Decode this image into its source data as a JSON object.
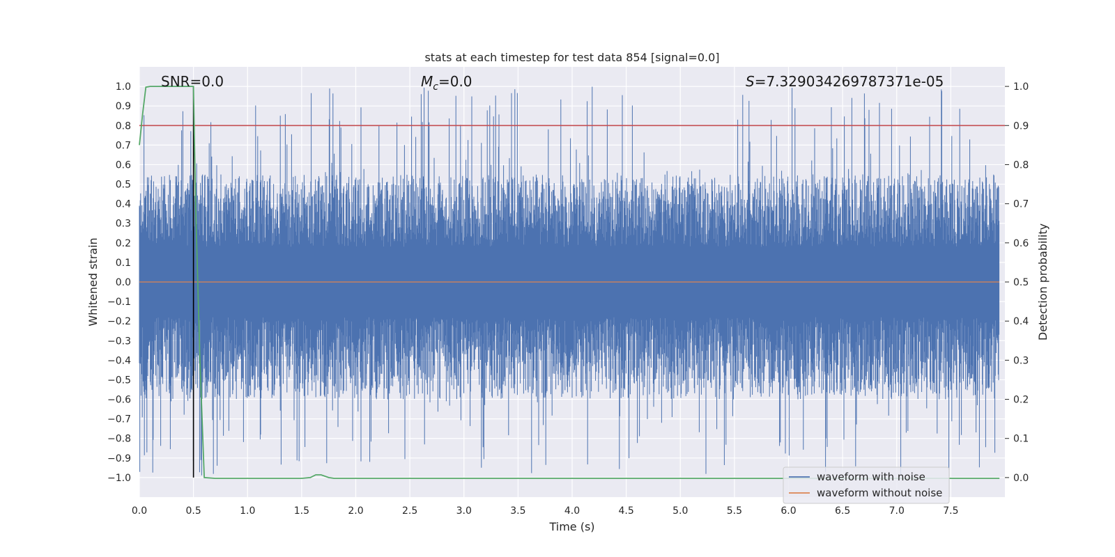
{
  "chart_data": {
    "type": "line",
    "title": "stats at each timestep for test data 854 [signal=0.0]",
    "xlabel": "Time (s)",
    "ylabel": "Whitened strain",
    "y2label": "Detection probability",
    "xlim": [
      0.0,
      8.0
    ],
    "ylim": [
      -1.1,
      1.1
    ],
    "y2lim": [
      -0.05,
      1.05
    ],
    "xticks": [
      0.0,
      0.5,
      1.0,
      1.5,
      2.0,
      2.5,
      3.0,
      3.5,
      4.0,
      4.5,
      5.0,
      5.5,
      6.0,
      6.5,
      7.0,
      7.5
    ],
    "xtick_labels": [
      "0.0",
      "0.5",
      "1.0",
      "1.5",
      "2.0",
      "2.5",
      "3.0",
      "3.5",
      "4.0",
      "4.5",
      "5.0",
      "5.5",
      "6.0",
      "6.5",
      "7.0",
      "7.5"
    ],
    "yticks": [
      1.0,
      0.9,
      0.8,
      0.7,
      0.6,
      0.5,
      0.4,
      0.3,
      0.2,
      0.1,
      0.0,
      -0.1,
      -0.2,
      -0.3,
      -0.4,
      -0.5,
      -0.6,
      -0.7,
      -0.8,
      -0.9,
      -1.0
    ],
    "ytick_labels": [
      "1.0",
      "0.9",
      "0.8",
      "0.7",
      "0.6",
      "0.5",
      "0.4",
      "0.3",
      "0.2",
      "0.1",
      "0.0",
      "−0.1",
      "−0.2",
      "−0.3",
      "−0.4",
      "−0.5",
      "−0.6",
      "−0.7",
      "−0.8",
      "−0.9",
      "−1.0"
    ],
    "y2ticks": [
      1.0,
      0.9,
      0.8,
      0.7,
      0.6,
      0.5,
      0.4,
      0.3,
      0.2,
      0.1,
      0.0
    ],
    "y2tick_labels": [
      "1.0",
      "0.9",
      "0.8",
      "0.7",
      "0.6",
      "0.5",
      "0.4",
      "0.3",
      "0.2",
      "0.1",
      "0.0"
    ],
    "grid": true,
    "legend_position": "bottom-right",
    "annotations": {
      "snr": "SNR=0.0",
      "mc_symbol": "M",
      "mc_sub": "c",
      "mc_value": "=0.0",
      "s_symbol": "S",
      "s_value": "=7.329034269787371e-05"
    },
    "series": [
      {
        "name": "waveform with noise",
        "axis": "left",
        "color": "#4c72b0",
        "noise_peak_hint": {
          "typical_upper": 0.55,
          "typical_lower": -0.6,
          "max": 1.0,
          "min": -0.99
        }
      },
      {
        "name": "waveform without noise",
        "axis": "left",
        "color": "#dd8452",
        "constant": 0.0
      },
      {
        "name": "detection probability",
        "axis": "right",
        "color": "#55a868",
        "x": [
          0.0,
          0.03,
          0.06,
          0.1,
          0.2,
          0.3,
          0.4,
          0.5,
          0.52,
          0.56,
          0.6,
          0.7,
          1.0,
          1.5,
          1.58,
          1.63,
          1.68,
          1.75,
          1.8,
          2.0,
          4.0,
          6.0,
          7.95
        ],
        "values": [
          0.85,
          0.93,
          0.998,
          1.0,
          1.0,
          1.0,
          1.0,
          1.0,
          0.7,
          0.3,
          0.0,
          -0.002,
          -0.002,
          -0.002,
          0.0,
          0.007,
          0.007,
          0.0,
          -0.002,
          -0.002,
          -0.002,
          -0.002,
          -0.002
        ]
      }
    ],
    "reference_lines": [
      {
        "axis": "right",
        "orientation": "horizontal",
        "value": 0.9,
        "color": "#c44e52"
      },
      {
        "axis": "x",
        "orientation": "vertical",
        "value": 0.5,
        "color": "#000000"
      }
    ],
    "colors": {
      "plot_bg": "#eaeaf2",
      "grid": "#ffffff",
      "text": "#262626"
    }
  }
}
